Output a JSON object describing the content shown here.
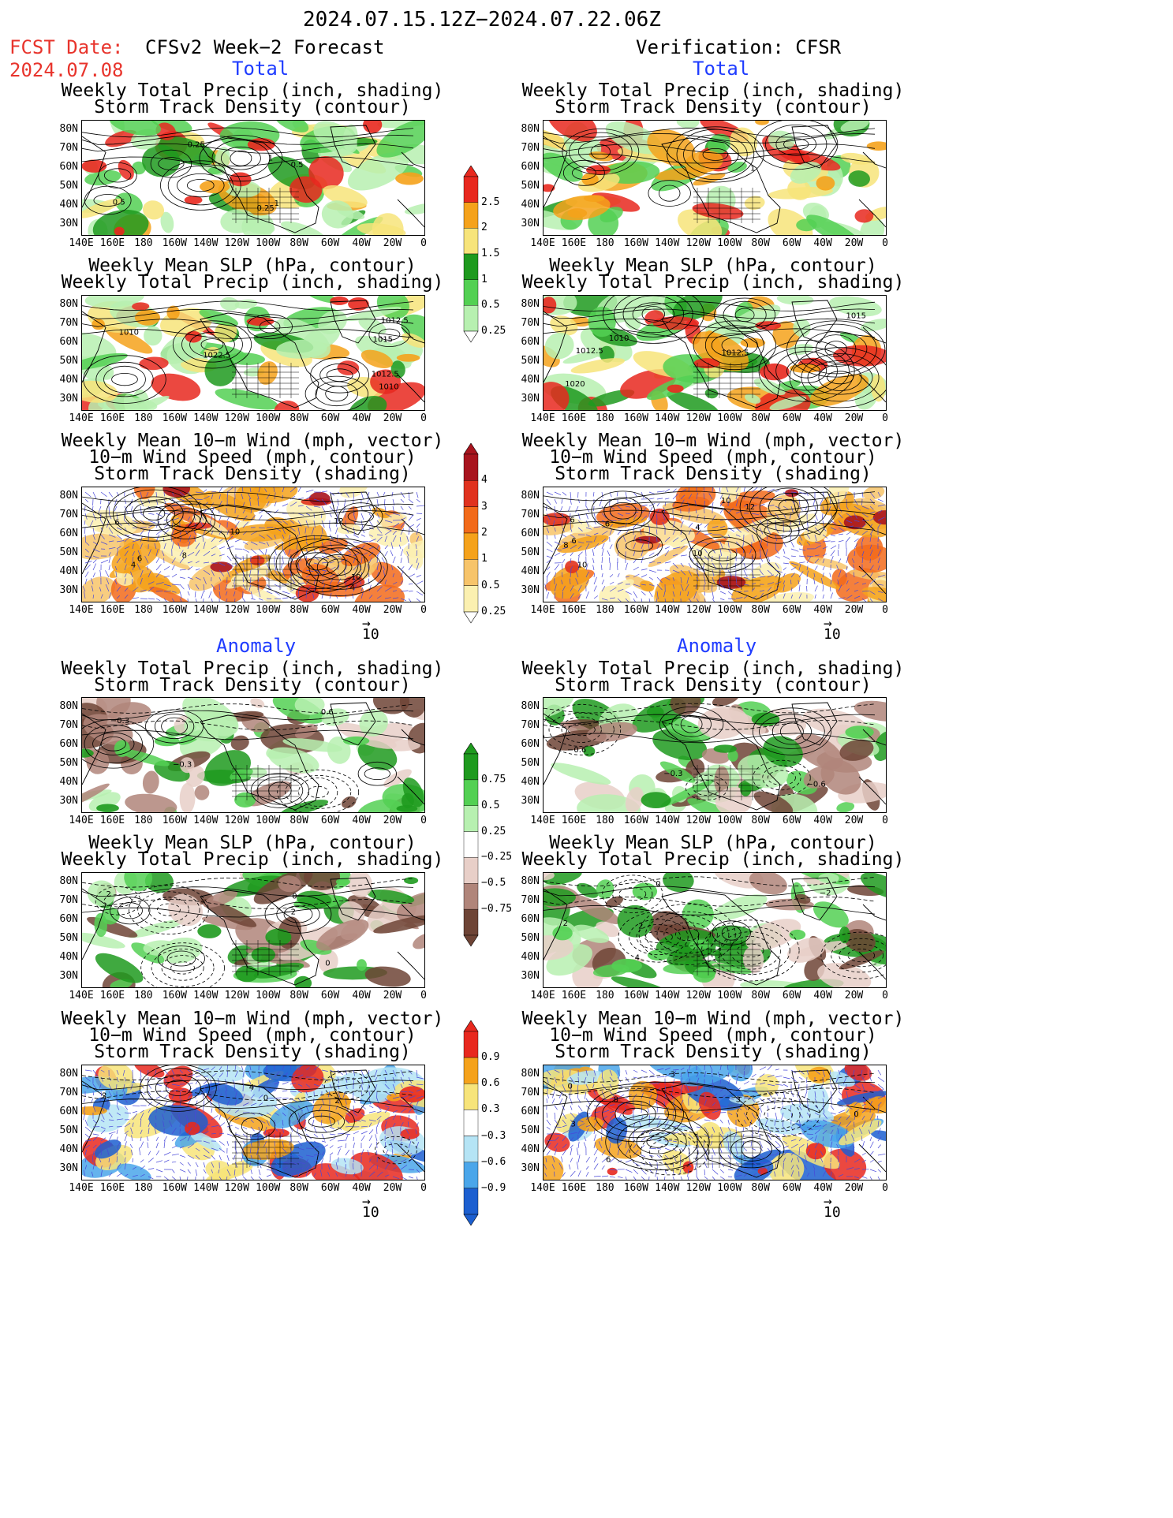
{
  "header": {
    "date_range": "2024.07.15.12Z−2024.07.22.06Z",
    "fcst_label": "FCST Date:",
    "fcst_date": "2024.07.08",
    "left_title": "CFSv2 Week−2 Forecast",
    "right_title": "Verification: CFSR",
    "total_label": "Total",
    "anomaly_label": "Anomaly"
  },
  "panel_titles": {
    "precip_storm": [
      "Weekly Total Precip (inch, shading)",
      "Storm Track Density (contour)"
    ],
    "slp_precip": [
      "Weekly Mean SLP (hPa, contour)",
      "Weekly Total Precip (inch, shading)"
    ],
    "wind": [
      "Weekly Mean 10−m Wind (mph, vector)",
      "10−m Wind Speed (mph, contour)",
      "Storm Track Density (shading)"
    ]
  },
  "axes": {
    "lat_labels": [
      "80N",
      "70N",
      "60N",
      "50N",
      "40N",
      "30N"
    ],
    "lon_labels": [
      "140E",
      "160E",
      "180",
      "160W",
      "140W",
      "120W",
      "100W",
      "80W",
      "60W",
      "40W",
      "20W",
      "0"
    ]
  },
  "colorbars": {
    "total_precip": {
      "labels": [
        "2.5",
        "2",
        "1.5",
        "1",
        "0.5",
        "0.25"
      ],
      "colors": [
        "#e8281e",
        "#f5a21b",
        "#f7e47a",
        "#1e9a1e",
        "#53d053",
        "#b7f0b0"
      ]
    },
    "total_storm": {
      "labels": [
        "4",
        "3",
        "2",
        "1",
        "0.5",
        "0.25"
      ],
      "colors": [
        "#a8141e",
        "#e0321e",
        "#f26a1a",
        "#f5a21b",
        "#f7c46a",
        "#fbf0b0"
      ]
    },
    "anom_precip": {
      "labels": [
        "0.75",
        "0.5",
        "0.25",
        "−0.25",
        "−0.5",
        "−0.75"
      ],
      "colors": [
        "#1e9a1e",
        "#53d053",
        "#b7f0b0",
        "#e8cfc8",
        "#b0857a",
        "#6e4436"
      ]
    },
    "anom_storm": {
      "labels": [
        "0.9",
        "0.6",
        "0.3",
        "−0.3",
        "−0.6",
        "−0.9"
      ],
      "colors": [
        "#e8281e",
        "#f5a21b",
        "#f7e47a",
        "#b5e4f5",
        "#4aa6ea",
        "#1c5fd0"
      ]
    }
  },
  "vector_ref": "10",
  "panel_annotations": {
    "p1_left": [
      "0.5",
      "0.25",
      "0.25",
      "1",
      "1",
      "0.5"
    ],
    "p1_right": [
      "1"
    ],
    "p2_left": [
      "1010",
      "1010",
      "1012.5",
      "1015",
      "1022.5",
      "1012.5"
    ],
    "p2_right": [
      "1012.5",
      "1012.5",
      "1015",
      "1010",
      "1020"
    ],
    "p3_left": [
      "4",
      "6",
      "10",
      "12",
      "8",
      "4",
      "10",
      "6"
    ],
    "p3_right": [
      "10",
      "6",
      "4",
      "6",
      "10",
      "8",
      "12",
      "10",
      "6"
    ],
    "p4_left": [
      "0.6",
      "−0.3",
      "−0.3"
    ],
    "p4_right": [
      "−0.3",
      "−0.6",
      "−0.6"
    ],
    "p5_left": [
      "0",
      "2",
      "−2",
      "0"
    ],
    "p5_right": [
      "4",
      "2",
      "0",
      "−2",
      "2"
    ],
    "p6_left": [
      "0",
      "2",
      "2",
      "4"
    ],
    "p6_right": [
      "6",
      "0",
      "3",
      "3",
      "3",
      "8",
      "0"
    ]
  }
}
